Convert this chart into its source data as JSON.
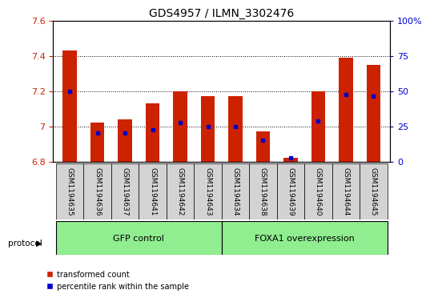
{
  "title": "GDS4957 / ILMN_3302476",
  "samples": [
    "GSM1194635",
    "GSM1194636",
    "GSM1194637",
    "GSM1194641",
    "GSM1194642",
    "GSM1194643",
    "GSM1194634",
    "GSM1194638",
    "GSM1194639",
    "GSM1194640",
    "GSM1194644",
    "GSM1194645"
  ],
  "bar_bottom": 6.8,
  "bar_tops": [
    7.43,
    7.02,
    7.04,
    7.13,
    7.2,
    7.17,
    7.17,
    6.97,
    6.82,
    7.2,
    7.39,
    7.35
  ],
  "percentile_values": [
    7.2,
    6.96,
    6.96,
    6.98,
    7.02,
    7.0,
    7.0,
    6.92,
    6.82,
    7.03,
    7.18,
    7.17
  ],
  "ylim_left": [
    6.8,
    7.6
  ],
  "ylim_right": [
    0,
    100
  ],
  "yticks_left": [
    6.8,
    7.0,
    7.2,
    7.4,
    7.6
  ],
  "yticks_right": [
    0,
    25,
    50,
    75,
    100
  ],
  "ytick_right_labels": [
    "0",
    "25",
    "50",
    "75",
    "100%"
  ],
  "bar_color": "#cc2200",
  "dot_color": "#0000cc",
  "group1_label": "GFP control",
  "group2_label": "FOXA1 overexpression",
  "group1_count": 6,
  "group2_count": 6,
  "group_bg": "#90ee90",
  "protocol_label": "protocol",
  "legend_red": "transformed count",
  "legend_blue": "percentile rank within the sample",
  "bar_width": 0.5,
  "tick_label_fontsize": 6.5,
  "title_fontsize": 10,
  "axis_fontsize": 8
}
